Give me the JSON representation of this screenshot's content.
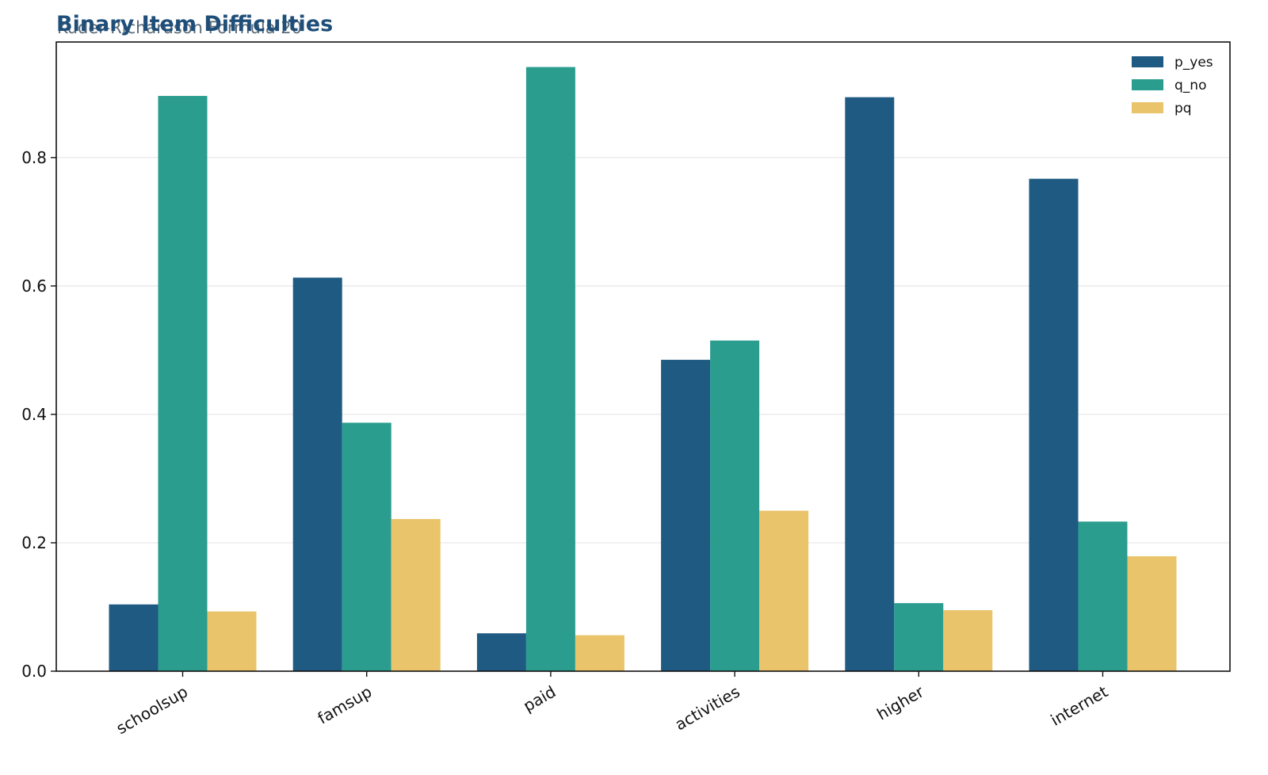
{
  "chart_data": {
    "type": "bar",
    "title": "Binary Item Difficulties",
    "subtitle": "Kuder-Richardson Formula 20",
    "xlabel": "",
    "ylabel": "",
    "categories": [
      "schoolsup",
      "famsup",
      "paid",
      "activities",
      "higher",
      "internet"
    ],
    "series": [
      {
        "name": "p_yes",
        "color": "#1f5a82",
        "values": [
          0.104,
          0.613,
          0.059,
          0.485,
          0.894,
          0.767
        ]
      },
      {
        "name": "q_no",
        "color": "#2a9d8f",
        "values": [
          0.896,
          0.387,
          0.941,
          0.515,
          0.106,
          0.233
        ]
      },
      {
        "name": "pq",
        "color": "#e9c46a",
        "values": [
          0.093,
          0.237,
          0.056,
          0.25,
          0.095,
          0.179
        ]
      }
    ],
    "ylim": [
      0,
      0.98
    ],
    "yticks": [
      "0.0",
      "0.2",
      "0.4",
      "0.6",
      "0.8"
    ],
    "grid": "horizontal",
    "legend_position": "top-right"
  }
}
